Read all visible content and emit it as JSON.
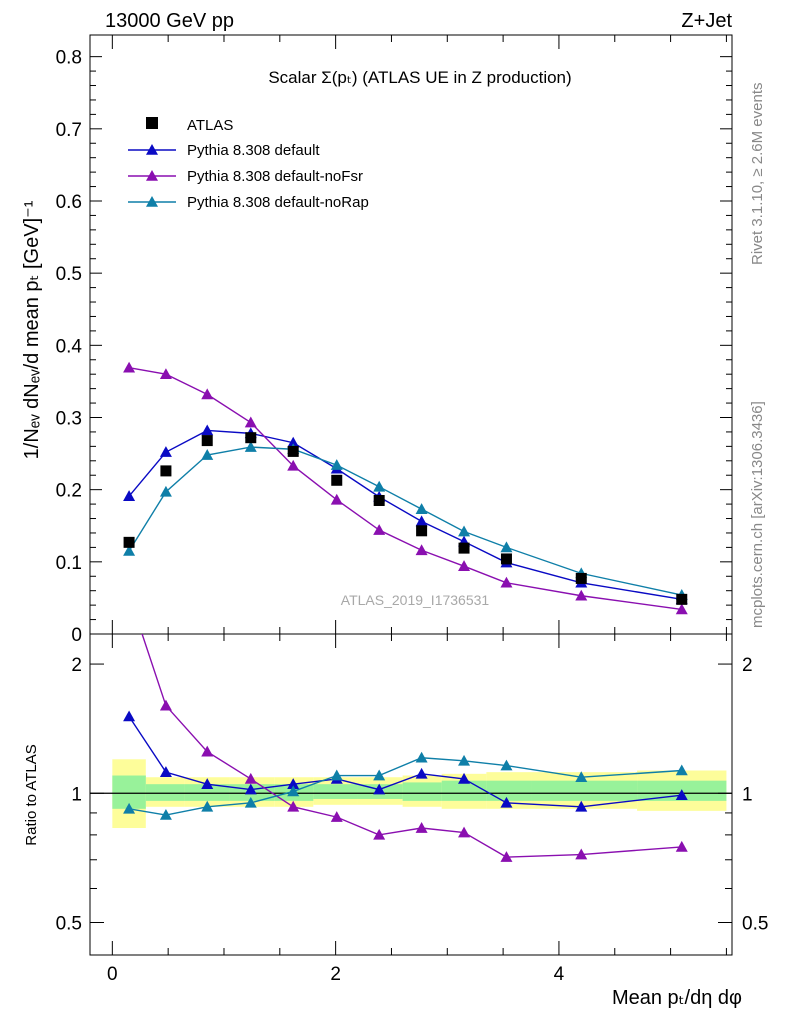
{
  "header": {
    "left": "13000 GeV pp",
    "right": "Z+Jet"
  },
  "side": {
    "rivet": "Rivet 3.1.10, ≥ 2.6M events",
    "mcplots": "mcplots.cern.ch [arXiv:1306.3436]"
  },
  "chart_data": {
    "type": "scatter",
    "title": "Scalar Σ(pₜ) (ATLAS UE in Z production)",
    "watermark": "ATLAS_2019_I1736531",
    "xlabel": "Mean pₜ/dη dφ",
    "ylabel": "1/Nₑᵥ dNₑᵥ/d mean pₜ [GeV]⁻¹",
    "ratio_ylabel": "Ratio to ATLAS",
    "xlim": [
      -0.2,
      5.55
    ],
    "ylim": [
      0,
      0.83
    ],
    "ratio_ylim": [
      0.42,
      2.35
    ],
    "ratio_log_scale": true,
    "x_ticks": [
      "0",
      "2",
      "4"
    ],
    "y_ticks": [
      "0",
      "0.1",
      "0.2",
      "0.3",
      "0.4",
      "0.5",
      "0.6",
      "0.7",
      "0.8"
    ],
    "ratio_ticks": [
      "0.5",
      "1",
      "2"
    ],
    "legend_position": "top-left",
    "x": [
      0.15,
      0.48,
      0.85,
      1.24,
      1.62,
      2.01,
      2.39,
      2.77,
      3.15,
      3.53,
      4.2,
      5.1
    ],
    "data": {
      "name": "ATLAS",
      "values": [
        0.127,
        0.226,
        0.268,
        0.272,
        0.253,
        0.213,
        0.185,
        0.143,
        0.119,
        0.104,
        0.077,
        0.048
      ]
    },
    "band_edges": [
      0.0,
      0.3,
      0.65,
      1.05,
      1.45,
      1.8,
      2.2,
      2.6,
      2.95,
      3.35,
      3.75,
      4.7,
      5.5
    ],
    "band_green": [
      [
        0.92,
        1.1
      ],
      [
        0.96,
        1.05
      ],
      [
        0.96,
        1.05
      ],
      [
        0.96,
        1.05
      ],
      [
        0.96,
        1.05
      ],
      [
        0.97,
        1.05
      ],
      [
        0.97,
        1.05
      ],
      [
        0.96,
        1.06
      ],
      [
        0.96,
        1.07
      ],
      [
        0.96,
        1.07
      ],
      [
        0.96,
        1.07
      ],
      [
        0.96,
        1.07
      ]
    ],
    "band_yellow": [
      [
        0.83,
        1.2
      ],
      [
        0.93,
        1.09
      ],
      [
        0.93,
        1.09
      ],
      [
        0.93,
        1.09
      ],
      [
        0.93,
        1.09
      ],
      [
        0.94,
        1.09
      ],
      [
        0.94,
        1.09
      ],
      [
        0.93,
        1.1
      ],
      [
        0.92,
        1.11
      ],
      [
        0.92,
        1.12
      ],
      [
        0.92,
        1.12
      ],
      [
        0.91,
        1.13
      ]
    ],
    "series": [
      {
        "name": "Pythia 8.308 default",
        "color": "#0a0ac4",
        "values": [
          0.191,
          0.252,
          0.282,
          0.278,
          0.265,
          0.229,
          0.19,
          0.156,
          0.128,
          0.099,
          0.071,
          0.048
        ],
        "ratio": [
          1.51,
          1.12,
          1.05,
          1.02,
          1.05,
          1.08,
          1.02,
          1.11,
          1.08,
          0.95,
          0.93,
          0.99
        ]
      },
      {
        "name": "Pythia 8.308 default-noFsr",
        "color": "#8a0fb0",
        "values": [
          0.369,
          0.36,
          0.332,
          0.293,
          0.233,
          0.186,
          0.144,
          0.116,
          0.094,
          0.071,
          0.053,
          0.034
        ],
        "ratio": [
          2.9,
          1.6,
          1.25,
          1.08,
          0.93,
          0.88,
          0.8,
          0.83,
          0.81,
          0.71,
          0.72,
          0.75
        ]
      },
      {
        "name": "Pythia 8.308 default-noRap",
        "color": "#0f7fa8",
        "values": [
          0.115,
          0.197,
          0.248,
          0.259,
          0.256,
          0.234,
          0.204,
          0.173,
          0.142,
          0.12,
          0.084,
          0.054
        ],
        "ratio": [
          0.92,
          0.89,
          0.93,
          0.95,
          1.01,
          1.1,
          1.1,
          1.21,
          1.19,
          1.16,
          1.09,
          1.13
        ]
      }
    ]
  }
}
